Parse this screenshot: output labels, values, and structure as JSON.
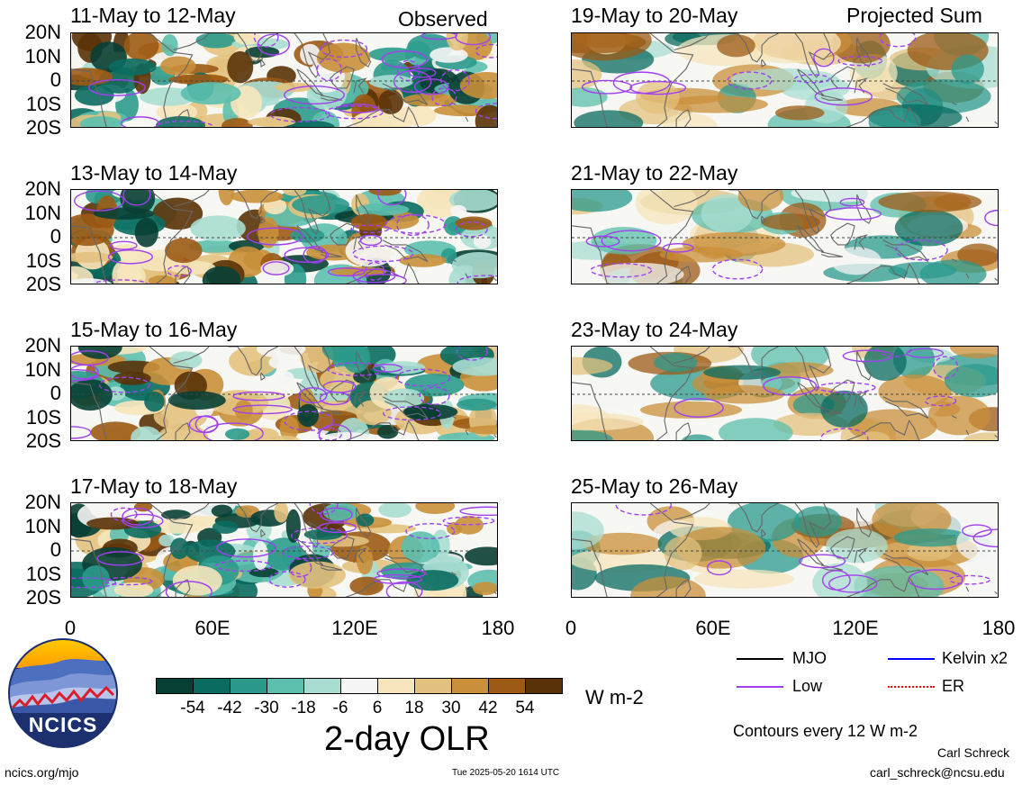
{
  "column_headers": {
    "left": "Observed",
    "right": "Projected Sum"
  },
  "panels": [
    {
      "title": "11-May to 12-May"
    },
    {
      "title": "19-May to 20-May"
    },
    {
      "title": "13-May to 14-May"
    },
    {
      "title": "21-May to 22-May"
    },
    {
      "title": "15-May to 16-May"
    },
    {
      "title": "23-May to 24-May"
    },
    {
      "title": "17-May to 18-May"
    },
    {
      "title": "25-May to 26-May"
    }
  ],
  "axes": {
    "lat_labels": [
      "20N",
      "10N",
      "0",
      "10S",
      "20S"
    ],
    "lon_labels": [
      "0",
      "60E",
      "120E",
      "180"
    ],
    "lon_range": [
      0,
      180
    ],
    "lat_range": [
      -20,
      20
    ]
  },
  "colorbar": {
    "labels": [
      "-54",
      "-42",
      "-30",
      "-18",
      "-6",
      "6",
      "18",
      "30",
      "42",
      "54"
    ],
    "colors": [
      "#083f34",
      "#0a6b60",
      "#2b9a8c",
      "#5cbfae",
      "#a9ddd2",
      "#f5f5f5",
      "#f6e5bd",
      "#e3c27f",
      "#c98f3a",
      "#9c5a14",
      "#5a3208"
    ],
    "units": "W m-2",
    "title": "2-day OLR"
  },
  "legend": {
    "items": [
      {
        "label": "MJO",
        "color": "#000000"
      },
      {
        "label": "Kelvin x2",
        "color": "#0000ff"
      },
      {
        "label": "Low",
        "color": "#a040f0"
      },
      {
        "label": "ER",
        "color": "#ff0000"
      }
    ],
    "note": "Contours every 12 W m-2"
  },
  "footer": {
    "logo_text": "NCICS",
    "url": "ncics.org/mjo",
    "timestamp": "Tue 2025-05-20 1614 UTC",
    "author": "Carl Schreck",
    "email": "carl_schreck@ncsu.edu"
  }
}
